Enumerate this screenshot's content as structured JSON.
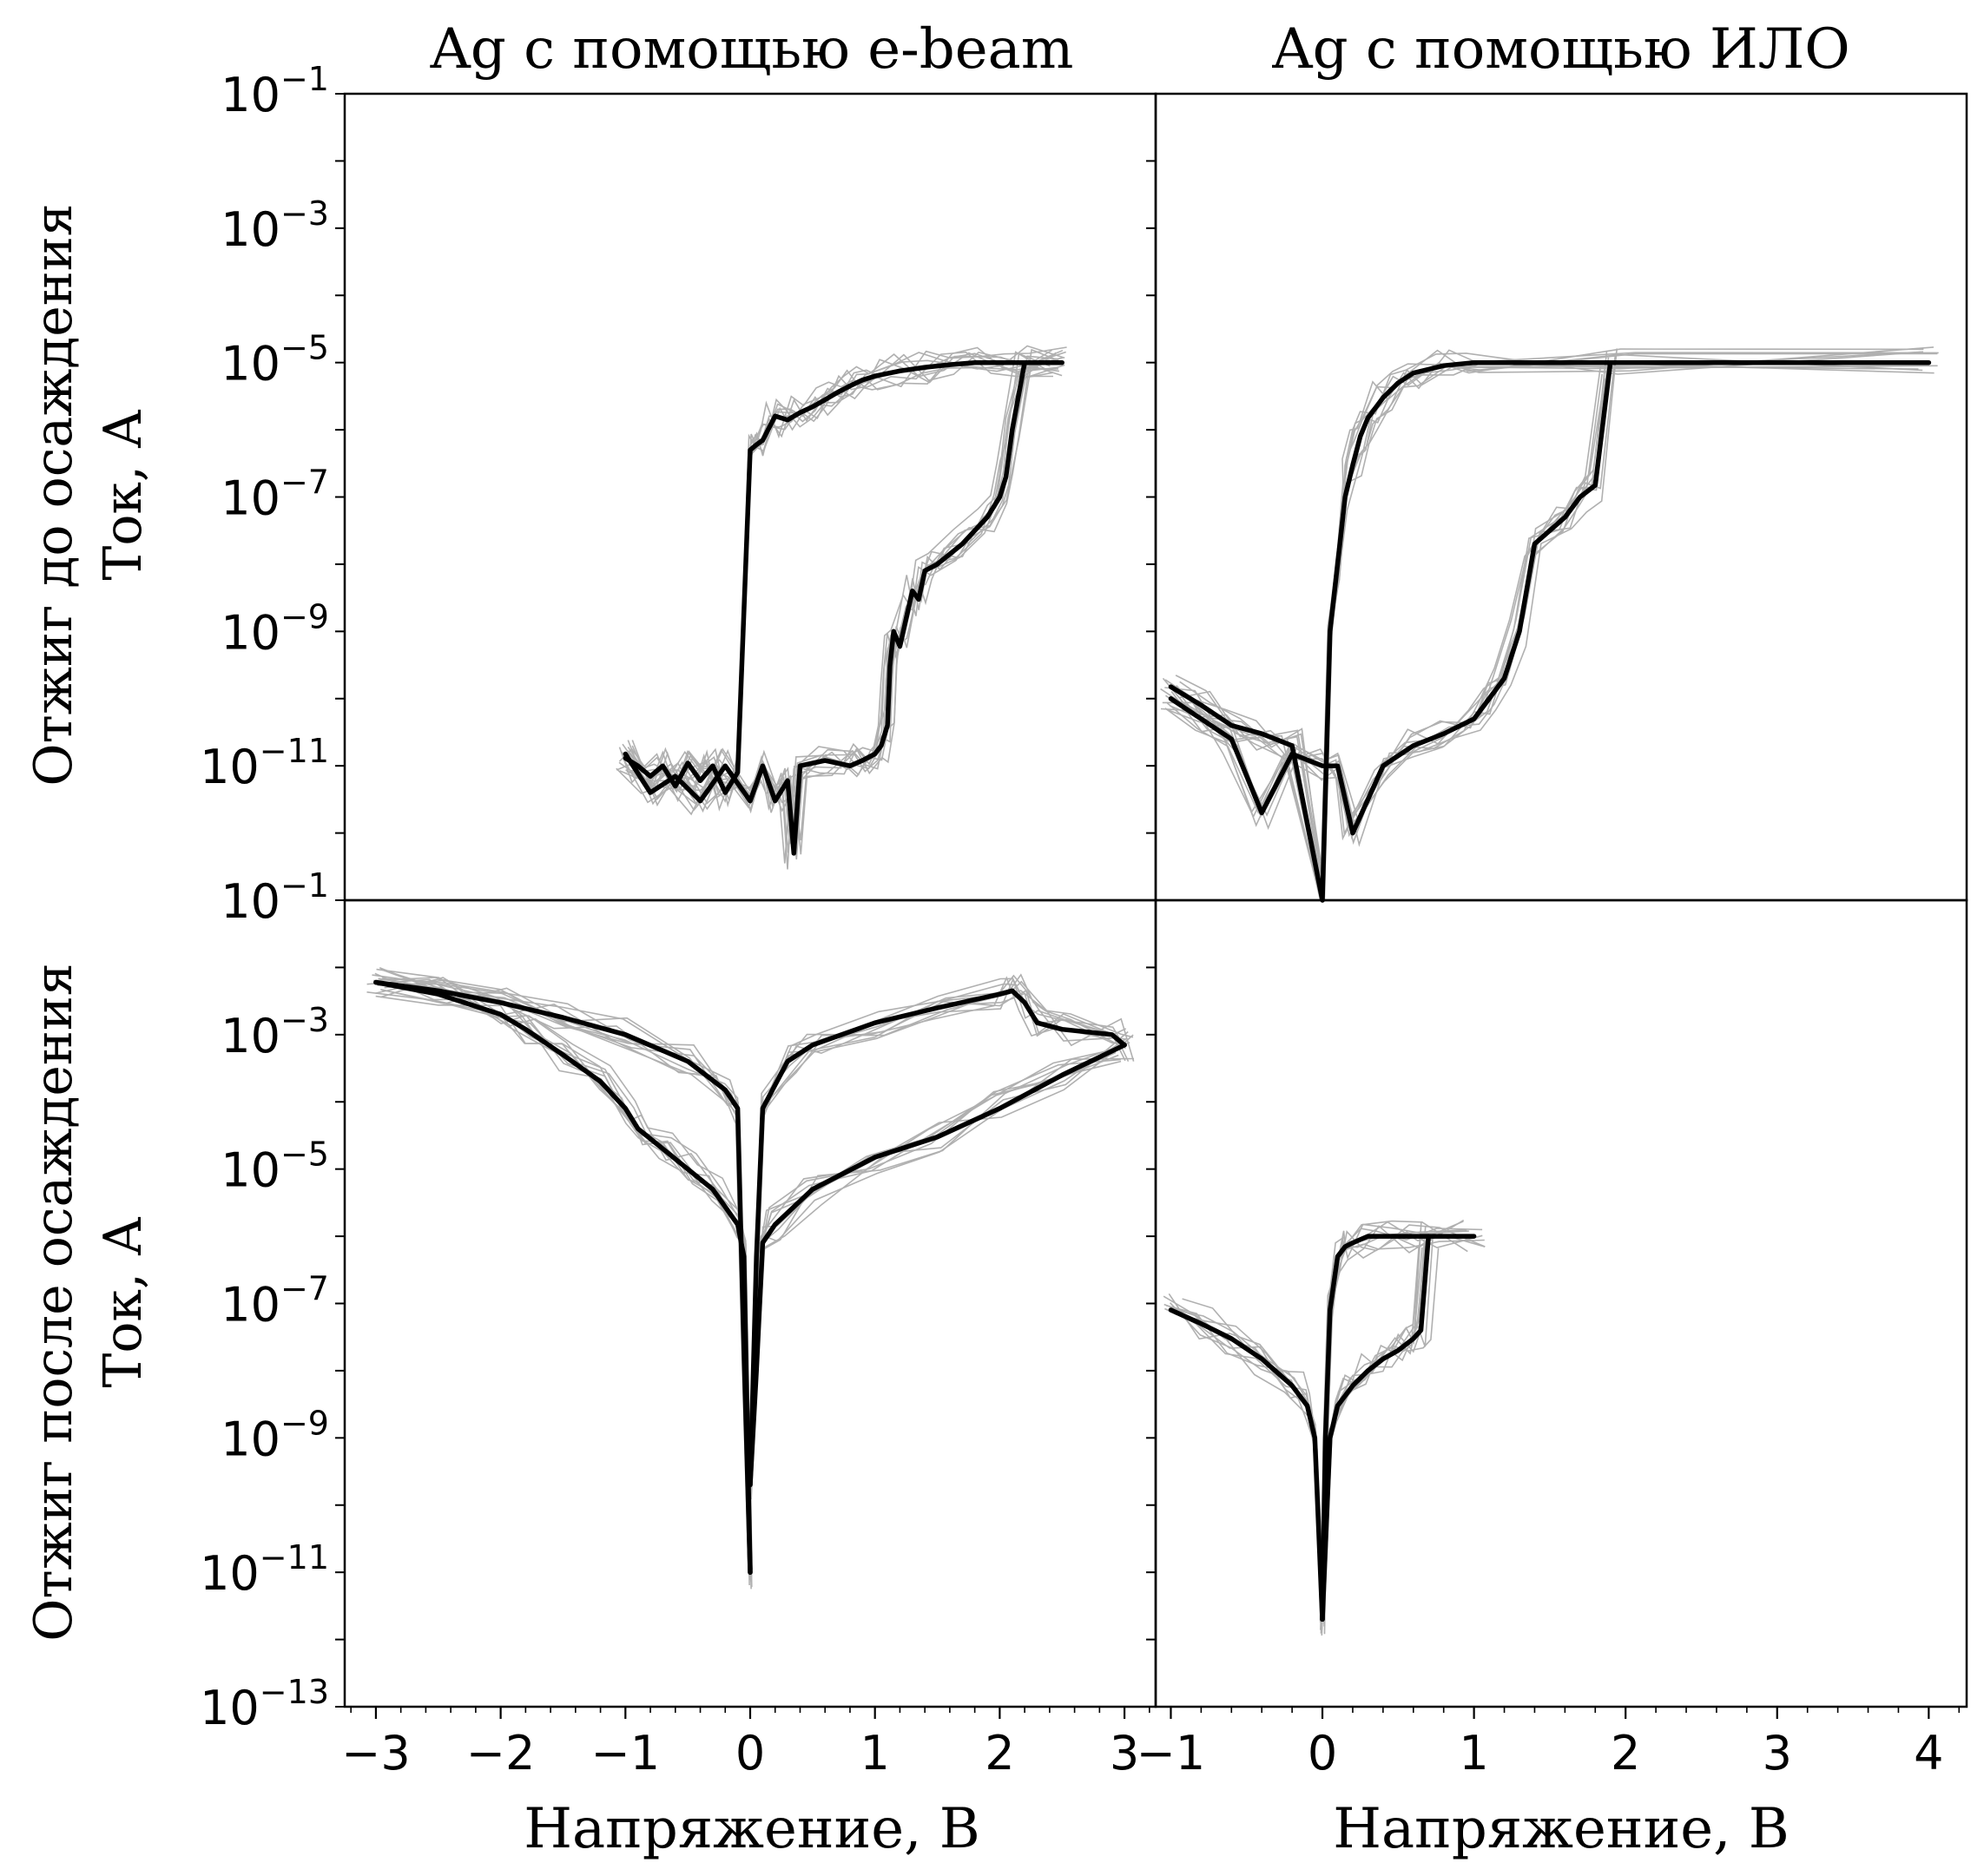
{
  "figure": {
    "col_titles": [
      "Ag с помощью e-beam",
      "Ag с помощью ИЛО"
    ],
    "row_labels": [
      [
        "Отжиг до осаждения",
        "Ток, А"
      ],
      [
        "Отжиг после осаждения",
        "Ток, А"
      ]
    ],
    "xlabel": "Напряжение, В"
  },
  "chart_data": [
    {
      "type": "line",
      "panel": "top-left",
      "title": "Ag с помощью e-beam",
      "ylabel": "Ток, А",
      "yscale": "log",
      "xlim": [
        -3.25,
        3.25
      ],
      "ylim": [
        1e-13,
        0.1
      ],
      "y_ticks": [
        "10^-1",
        "10^-3",
        "10^-5",
        "10^-7",
        "10^-9",
        "10^-11"
      ],
      "series": [
        {
          "color": "#000000",
          "x": [
            -1.0,
            -0.9,
            -0.8,
            -0.7,
            -0.6,
            -0.5,
            -0.4,
            -0.3,
            -0.2,
            -0.1,
            0.0,
            0.05,
            0.1,
            0.2,
            0.3,
            0.4,
            0.5,
            0.6,
            0.7,
            0.8,
            0.9,
            1.0,
            1.2,
            1.4,
            1.6,
            1.8,
            2.0,
            2.2,
            2.5
          ],
          "y": [
            1.3e-11,
            1e-11,
            7e-12,
            1e-11,
            5e-12,
            1.1e-11,
            6e-12,
            1e-11,
            4e-12,
            8e-12,
            5e-07,
            6e-07,
            7e-07,
            1.6e-06,
            1.4e-06,
            1.8e-06,
            2.2e-06,
            2.8e-06,
            3.6e-06,
            4.5e-06,
            5.5e-06,
            6.3e-06,
            7.5e-06,
            8.5e-06,
            9.3e-06,
            1e-05,
            1e-05,
            1e-05,
            1e-05
          ]
        },
        {
          "color": "#000000",
          "x": [
            2.45,
            2.2,
            2.1,
            2.05,
            2.0,
            1.9,
            1.7,
            1.5,
            1.4,
            1.35,
            1.3,
            1.2,
            1.15,
            1.12,
            1.1,
            1.05,
            1.0,
            0.9,
            0.8,
            0.6,
            0.4,
            0.35,
            0.3,
            0.2,
            0.1,
            0.0,
            -0.2,
            -0.4,
            -0.6,
            -0.8,
            -1.0
          ],
          "y": [
            1e-05,
            1e-05,
            1e-06,
            2e-07,
            1e-07,
            5e-08,
            2e-08,
            1e-08,
            8e-09,
            3e-09,
            4e-09,
            6e-10,
            1e-09,
            3e-10,
            4e-11,
            2e-11,
            1.5e-11,
            1.2e-11,
            1e-11,
            1.2e-11,
            1e-11,
            5e-13,
            6e-12,
            3e-12,
            1e-11,
            3e-12,
            1e-11,
            3e-12,
            7e-12,
            4e-12,
            1.5e-11
          ]
        }
      ]
    },
    {
      "type": "line",
      "panel": "top-right",
      "title": "Ag с помощью ИЛО",
      "yscale": "log",
      "xlim": [
        -1.1,
        4.25
      ],
      "ylim": [
        1e-13,
        0.1
      ],
      "series": [
        {
          "color": "#000000",
          "x": [
            -1.0,
            -0.8,
            -0.6,
            -0.4,
            -0.2,
            0.0,
            0.05,
            0.1,
            0.15,
            0.2,
            0.25,
            0.3,
            0.4,
            0.5,
            0.6,
            0.8,
            1.0,
            2.0,
            4.0
          ],
          "y": [
            1.5e-10,
            8e-11,
            4e-11,
            3e-11,
            2e-11,
            1e-13,
            1e-09,
            1e-08,
            1e-07,
            3e-07,
            8e-07,
            1.5e-06,
            3e-06,
            5e-06,
            7e-06,
            9e-06,
            1e-05,
            1e-05,
            1e-05
          ]
        },
        {
          "color": "#000000",
          "x": [
            1.9,
            1.8,
            1.7,
            1.6,
            1.4,
            1.3,
            1.2,
            1.1,
            1.0,
            0.8,
            0.6,
            0.4,
            0.2,
            0.1,
            0.0,
            -0.2,
            -0.4,
            -0.6,
            -0.8,
            -1.0
          ],
          "y": [
            1e-05,
            1.5e-07,
            1e-07,
            5e-08,
            2e-08,
            1e-09,
            2e-10,
            1e-10,
            5e-11,
            3e-11,
            2e-11,
            1e-11,
            1e-12,
            1e-11,
            1e-11,
            1.5e-11,
            2e-12,
            2.5e-11,
            5e-11,
            1e-10
          ]
        }
      ]
    },
    {
      "type": "line",
      "panel": "bottom-left",
      "ylabel": "Ток, А",
      "xlabel": "Напряжение, В",
      "yscale": "log",
      "xlim": [
        -3.25,
        3.25
      ],
      "ylim": [
        1e-13,
        0.1
      ],
      "x_ticks": [
        "−3",
        "−2",
        "−1",
        "0",
        "1",
        "2",
        "3"
      ],
      "y_ticks": [
        "10^-1",
        "10^-3",
        "10^-5",
        "10^-7",
        "10^-9",
        "10^-11",
        "10^-13"
      ],
      "series": [
        {
          "color": "#000000",
          "x": [
            -3.0,
            -2.5,
            -2.0,
            -1.5,
            -1.0,
            -0.5,
            -0.2,
            -0.1,
            -0.05,
            0.0
          ],
          "y": [
            0.006,
            0.0045,
            0.003,
            0.0018,
            0.001,
            0.0004,
            0.00015,
            8e-05,
            2e-08,
            1e-11
          ]
        },
        {
          "color": "#000000",
          "x": [
            0.0,
            0.05,
            0.1,
            0.3,
            0.5,
            1.0,
            1.5,
            2.0,
            2.1,
            2.2,
            2.3,
            2.5,
            2.9,
            3.0
          ],
          "y": [
            2e-10,
            5e-07,
            8e-05,
            0.0004,
            0.0007,
            0.0015,
            0.0025,
            0.004,
            0.0045,
            0.003,
            0.0015,
            0.0012,
            0.001,
            0.0007
          ]
        },
        {
          "color": "#000000",
          "x": [
            3.0,
            2.5,
            2.0,
            1.5,
            1.0,
            0.5,
            0.2,
            0.1,
            0.05,
            0.0
          ],
          "y": [
            0.0007,
            0.00025,
            8e-05,
            3e-05,
            1.5e-05,
            5e-06,
            1.5e-06,
            8e-07,
            1e-08,
            2e-10
          ]
        },
        {
          "color": "#000000",
          "x": [
            0.0,
            -0.05,
            -0.1,
            -0.3,
            -0.5,
            -0.7,
            -0.9,
            -1.0,
            -1.2,
            -1.5,
            -1.8,
            -2.0,
            -2.5,
            -3.0
          ],
          "y": [
            1e-11,
            5e-07,
            1.5e-06,
            5e-06,
            1e-05,
            2e-05,
            4e-05,
            8e-05,
            0.0002,
            0.0005,
            0.0012,
            0.002,
            0.004,
            0.006
          ]
        }
      ]
    },
    {
      "type": "line",
      "panel": "bottom-right",
      "xlabel": "Напряжение, В",
      "yscale": "log",
      "xlim": [
        -1.1,
        4.25
      ],
      "ylim": [
        1e-13,
        0.1
      ],
      "x_ticks": [
        "−1",
        "0",
        "1",
        "2",
        "3",
        "4"
      ],
      "series": [
        {
          "color": "#000000",
          "x": [
            -1.0,
            -0.8,
            -0.6,
            -0.4,
            -0.2,
            -0.1,
            -0.05,
            0.0
          ],
          "y": [
            8e-08,
            5e-08,
            3e-08,
            1.5e-08,
            6e-09,
            3e-09,
            1e-09,
            2e-12
          ]
        },
        {
          "color": "#000000",
          "x": [
            0.0,
            0.02,
            0.05,
            0.1,
            0.15,
            0.2,
            0.3,
            0.5,
            0.7,
            1.0
          ],
          "y": [
            2e-12,
            1e-09,
            8e-08,
            5e-07,
            7e-07,
            8e-07,
            1e-06,
            1e-06,
            1e-06,
            1e-06
          ]
        },
        {
          "color": "#000000",
          "x": [
            0.7,
            0.65,
            0.6,
            0.5,
            0.4,
            0.3,
            0.2,
            0.1,
            0.05,
            0.0
          ],
          "y": [
            1e-06,
            4e-08,
            3e-08,
            2e-08,
            1.5e-08,
            1e-08,
            6e-09,
            3e-09,
            1e-09,
            2e-12
          ]
        }
      ]
    }
  ]
}
